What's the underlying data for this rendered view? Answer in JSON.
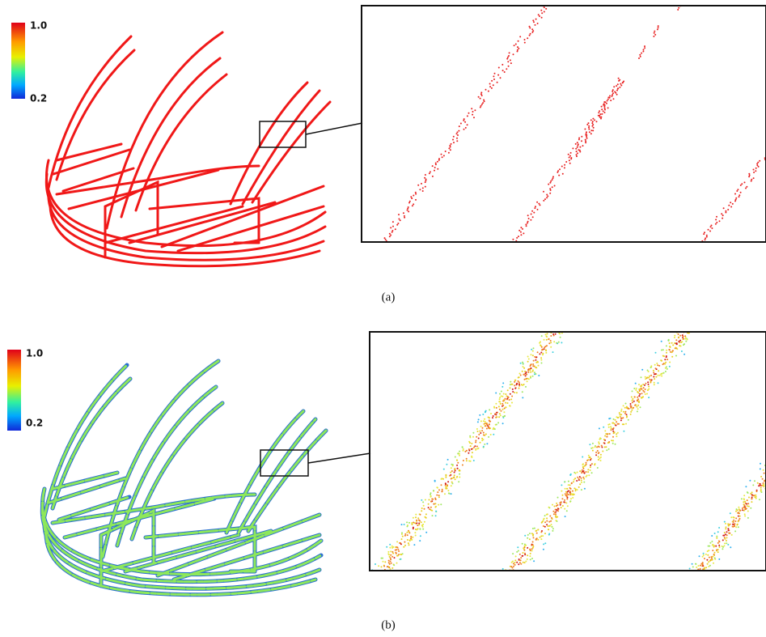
{
  "panels": [
    {
      "colorbar": {
        "max": "1.0",
        "min": "0.2"
      },
      "caption": "(a)"
    },
    {
      "colorbar": {
        "max": "1.0",
        "min": "0.2"
      },
      "caption": "(b)"
    }
  ]
}
